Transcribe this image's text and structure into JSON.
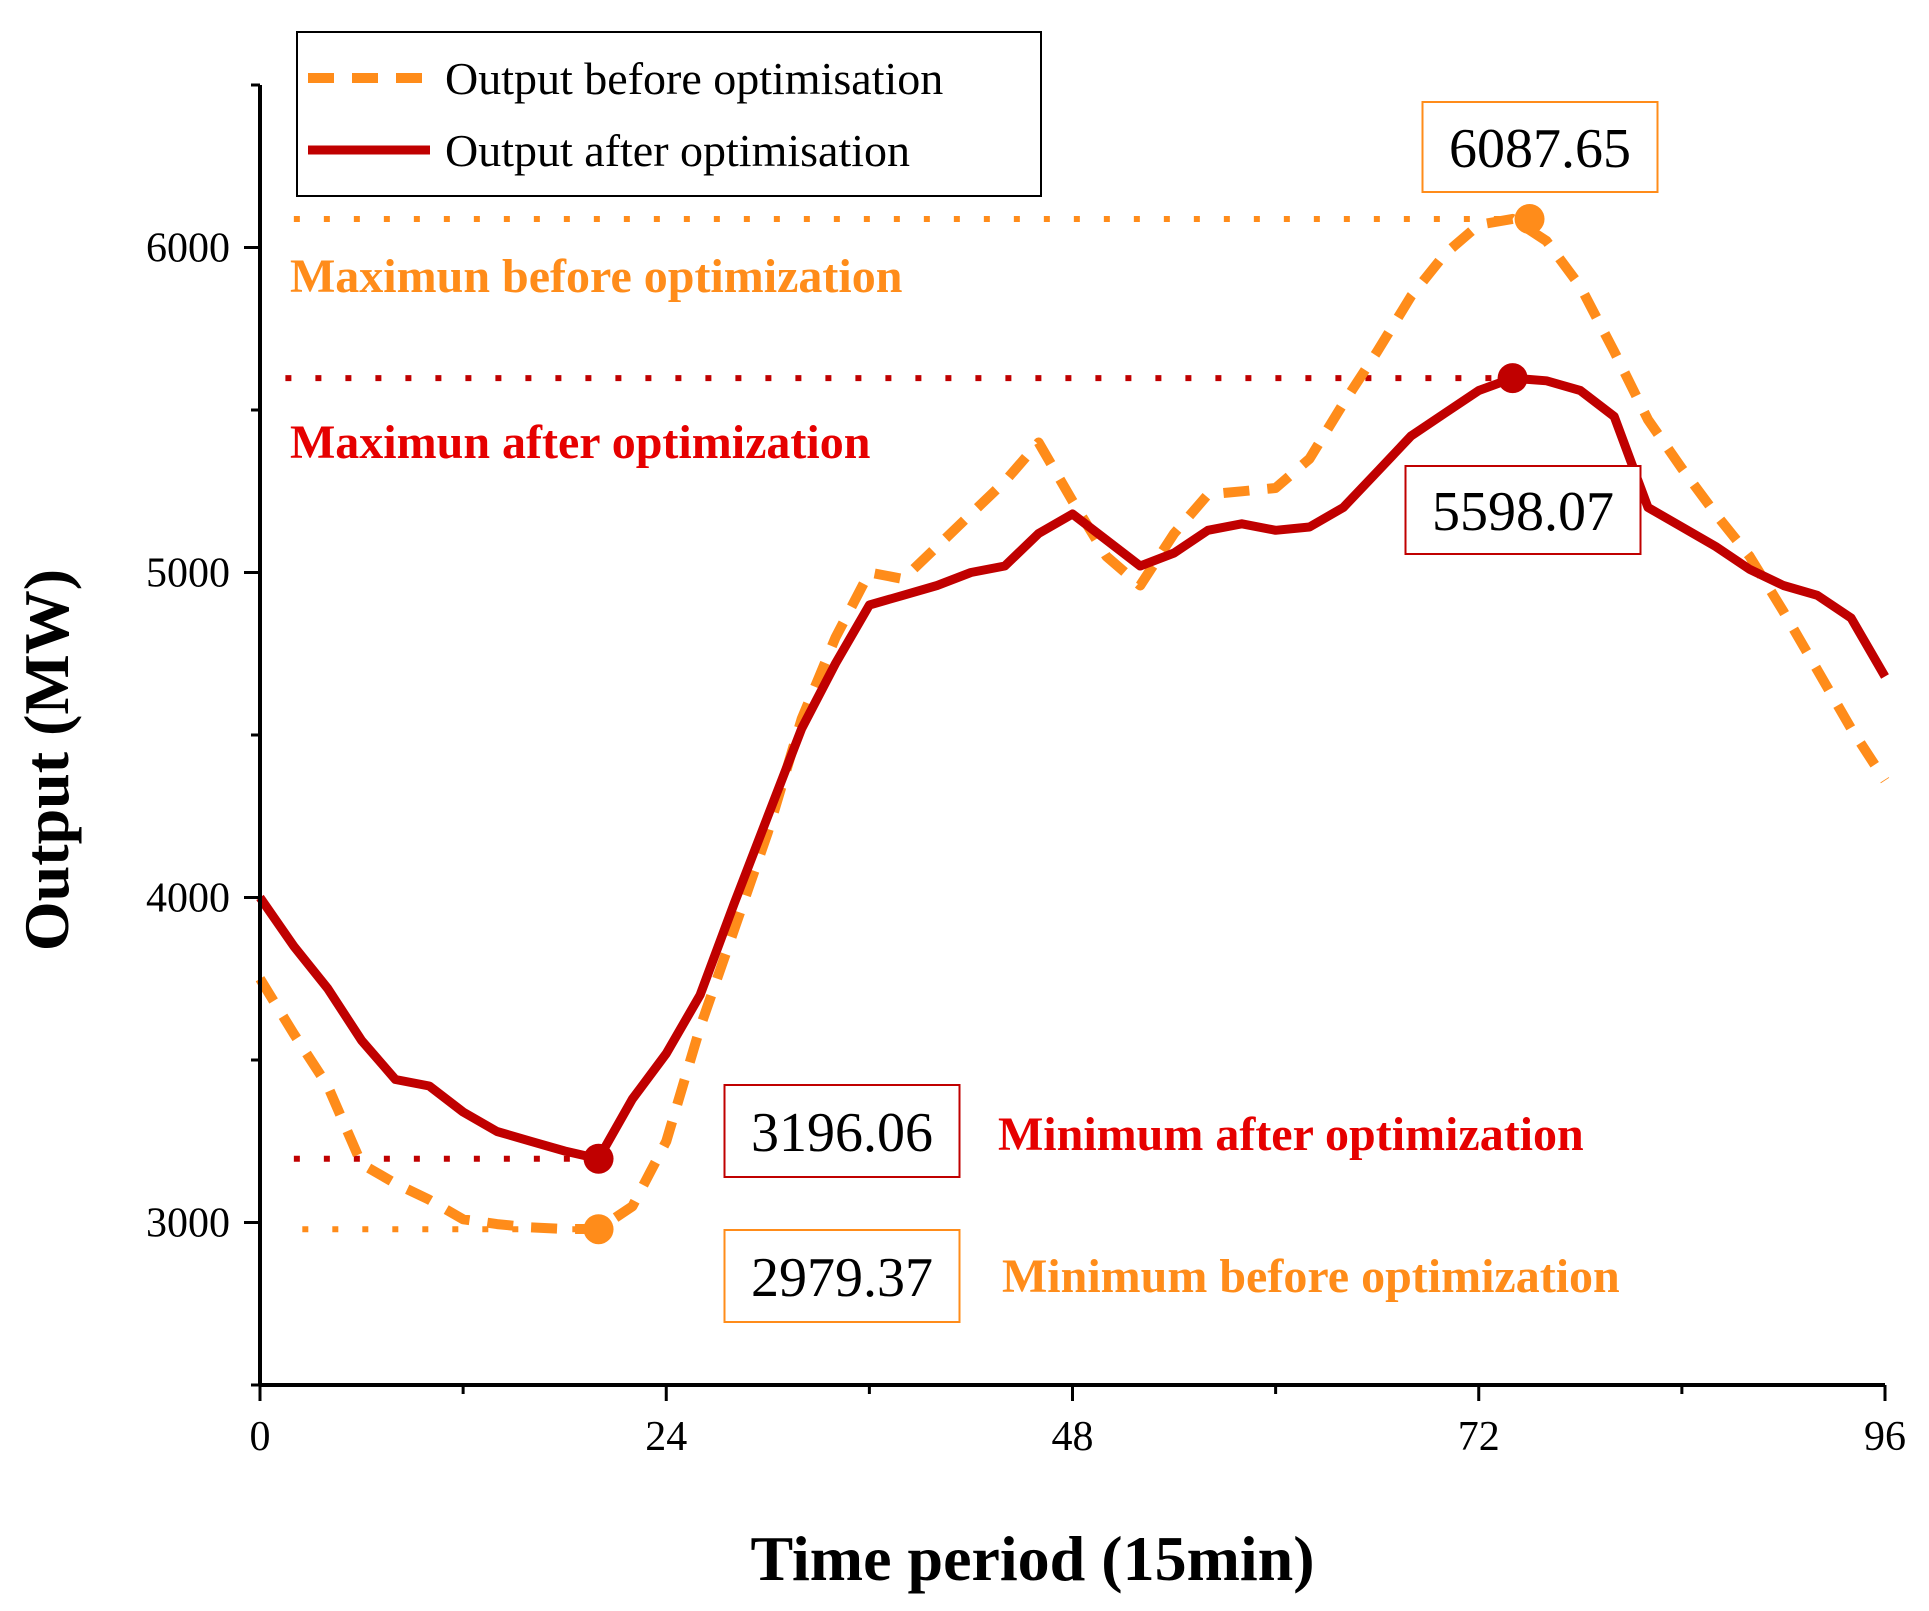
{
  "chart_data": {
    "type": "line",
    "xlabel": "Time period (15min)",
    "ylabel": "Output (MW)",
    "xlim": [
      0,
      96
    ],
    "ylim": [
      2500,
      6500
    ],
    "x_ticks": [
      0,
      24,
      48,
      72,
      96
    ],
    "y_ticks": [
      3000,
      4000,
      5000,
      6000
    ],
    "legend": {
      "position": "top-left",
      "entries": [
        "Output before optimisation",
        "Output after optimisation"
      ]
    },
    "colors": {
      "before": "#ff8c1a",
      "after": "#c00000",
      "after_annotation": "#e60000",
      "before_annotation": "#ff8c1a"
    },
    "series": [
      {
        "name": "Output before optimisation",
        "style": "dashed",
        "color": "#ff8c1a",
        "x": [
          0,
          2,
          4,
          6,
          8,
          10,
          12,
          14,
          16,
          18,
          20,
          22,
          24,
          26,
          28,
          30,
          32,
          34,
          36,
          38,
          40,
          42,
          44,
          46,
          48,
          50,
          52,
          54,
          56,
          58,
          60,
          62,
          64,
          66,
          68,
          70,
          72,
          74,
          76,
          78,
          80,
          82,
          84,
          86,
          88,
          90,
          92,
          94,
          96
        ],
        "values": [
          3750,
          3580,
          3420,
          3180,
          3120,
          3070,
          3010,
          2995,
          2985,
          2980,
          2980,
          3050,
          3250,
          3600,
          3900,
          4200,
          4550,
          4800,
          5000,
          4980,
          5080,
          5180,
          5280,
          5400,
          5220,
          5050,
          4960,
          5120,
          5240,
          5250,
          5260,
          5350,
          5520,
          5680,
          5850,
          5980,
          6070,
          6088,
          6020,
          5880,
          5680,
          5470,
          5320,
          5180,
          5050,
          4880,
          4700,
          4520,
          4360
        ]
      },
      {
        "name": "Output after optimisation",
        "style": "solid",
        "color": "#c00000",
        "x": [
          0,
          2,
          4,
          6,
          8,
          10,
          12,
          14,
          16,
          18,
          20,
          22,
          24,
          26,
          28,
          30,
          32,
          34,
          36,
          38,
          40,
          42,
          44,
          46,
          48,
          50,
          52,
          54,
          56,
          58,
          60,
          62,
          64,
          66,
          68,
          70,
          72,
          74,
          76,
          78,
          80,
          82,
          84,
          86,
          88,
          90,
          92,
          94,
          96
        ],
        "values": [
          4000,
          3850,
          3720,
          3560,
          3440,
          3420,
          3340,
          3280,
          3250,
          3220,
          3196,
          3380,
          3520,
          3700,
          3980,
          4250,
          4520,
          4720,
          4900,
          4930,
          4960,
          5000,
          5020,
          5120,
          5180,
          5100,
          5020,
          5060,
          5130,
          5150,
          5130,
          5140,
          5200,
          5310,
          5420,
          5490,
          5560,
          5598,
          5590,
          5560,
          5480,
          5200,
          5140,
          5080,
          5010,
          4960,
          4930,
          4860,
          4680
        ]
      }
    ],
    "annotations": {
      "max_before": {
        "label": "Maximun before optimization",
        "value_label": "6087.65",
        "x": 75,
        "y": 6087.65
      },
      "max_after": {
        "label": "Maximun after optimization",
        "value_label": "5598.07",
        "x": 74,
        "y": 5598.07
      },
      "min_after": {
        "label": "Minimum after optimization",
        "value_label": "3196.06",
        "x": 20,
        "y": 3196.06
      },
      "min_before": {
        "label": "Minimum before optimization",
        "value_label": "2979.37",
        "x": 20,
        "y": 2979.37
      }
    }
  }
}
